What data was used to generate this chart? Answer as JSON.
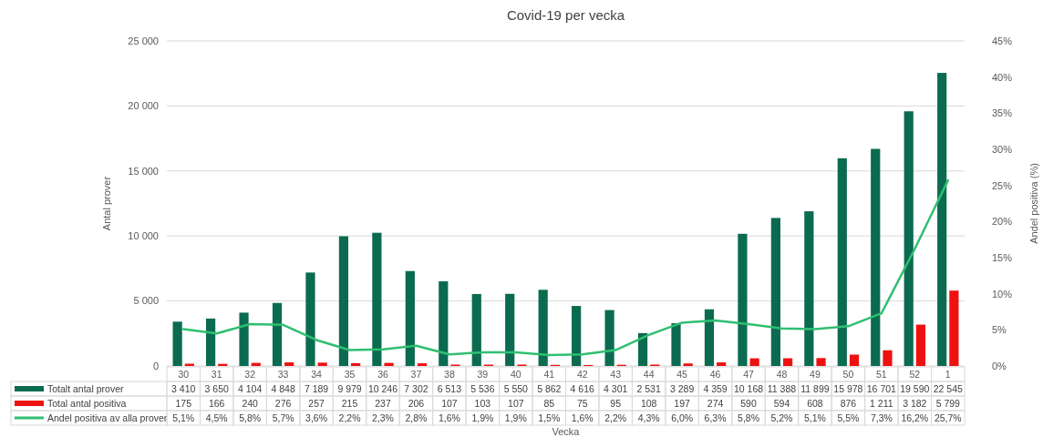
{
  "chart_data": {
    "type": "bar",
    "title": "Covid-19 per vecka",
    "xlabel": "Vecka",
    "ylabel": "Antal prover",
    "y2label": "Andel positiva (%)",
    "categories": [
      "30",
      "31",
      "32",
      "33",
      "34",
      "35",
      "36",
      "37",
      "38",
      "39",
      "40",
      "41",
      "42",
      "43",
      "44",
      "45",
      "46",
      "47",
      "48",
      "49",
      "50",
      "51",
      "52",
      "1"
    ],
    "series": [
      {
        "name": "Totalt antal prover",
        "color": "#0b6b50",
        "values": [
          3410,
          3650,
          4104,
          4848,
          7189,
          9979,
          10246,
          7302,
          6513,
          5536,
          5550,
          5862,
          4616,
          4301,
          2531,
          3289,
          4359,
          10168,
          11388,
          11899,
          15978,
          16701,
          19590,
          22545
        ],
        "value_labels": [
          "3 410",
          "3 650",
          "4 104",
          "4 848",
          "7 189",
          "9 979",
          "10 246",
          "7 302",
          "6 513",
          "5 536",
          "5 550",
          "5 862",
          "4 616",
          "4 301",
          "2 531",
          "3 289",
          "4 359",
          "10 168",
          "11 388",
          "11 899",
          "15 978",
          "16 701",
          "19 590",
          "22 545"
        ]
      },
      {
        "name": "Total antal positiva",
        "color": "#ee1111",
        "values": [
          175,
          166,
          240,
          276,
          257,
          215,
          237,
          206,
          107,
          103,
          107,
          85,
          75,
          95,
          108,
          197,
          274,
          590,
          594,
          608,
          876,
          1211,
          3182,
          5799
        ],
        "value_labels": [
          "175",
          "166",
          "240",
          "276",
          "257",
          "215",
          "237",
          "206",
          "107",
          "103",
          "107",
          "85",
          "75",
          "95",
          "108",
          "197",
          "274",
          "590",
          "594",
          "608",
          "876",
          "1 211",
          "3 182",
          "5 799"
        ]
      },
      {
        "name": "Andel positiva av alla prover",
        "type": "line",
        "axis": "y2",
        "color": "#2fbf71",
        "values": [
          5.1,
          4.5,
          5.8,
          5.7,
          3.6,
          2.2,
          2.3,
          2.8,
          1.6,
          1.9,
          1.9,
          1.5,
          1.6,
          2.2,
          4.3,
          6.0,
          6.3,
          5.8,
          5.2,
          5.1,
          5.5,
          7.3,
          16.2,
          25.7
        ],
        "value_labels": [
          "5,1%",
          "4,5%",
          "5,8%",
          "5,7%",
          "3,6%",
          "2,2%",
          "2,3%",
          "2,8%",
          "1,6%",
          "1,9%",
          "1,9%",
          "1,5%",
          "1,6%",
          "2,2%",
          "4,3%",
          "6,0%",
          "6,3%",
          "5,8%",
          "5,2%",
          "5,1%",
          "5,5%",
          "7,3%",
          "16,2%",
          "25,7%"
        ]
      }
    ],
    "ylim": [
      0,
      25000
    ],
    "yticks": [
      {
        "value": 0,
        "label": "0"
      },
      {
        "value": 5000,
        "label": "5 000"
      },
      {
        "value": 10000,
        "label": "10 000"
      },
      {
        "value": 15000,
        "label": "15 000"
      },
      {
        "value": 20000,
        "label": "20 000"
      },
      {
        "value": 25000,
        "label": "25 000"
      }
    ],
    "y2lim": [
      0,
      45
    ],
    "y2ticks": [
      {
        "value": 0,
        "label": "0%"
      },
      {
        "value": 5,
        "label": "5%"
      },
      {
        "value": 10,
        "label": "10%"
      },
      {
        "value": 15,
        "label": "15%"
      },
      {
        "value": 20,
        "label": "20%"
      },
      {
        "value": 25,
        "label": "25%"
      },
      {
        "value": 30,
        "label": "30%"
      },
      {
        "value": 35,
        "label": "35%"
      },
      {
        "value": 40,
        "label": "40%"
      },
      {
        "value": 45,
        "label": "45%"
      }
    ],
    "grid": "y",
    "legend": "bottom"
  }
}
